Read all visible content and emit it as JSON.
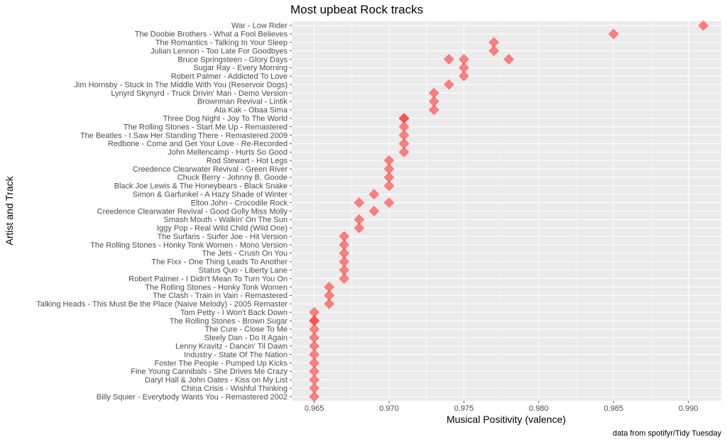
{
  "chart_data": {
    "type": "scatter",
    "title": "Most upbeat Rock tracks",
    "xlabel": "Musical Positivity (valence)",
    "ylabel": "Artist and Track",
    "caption": "data from spotifyr/Tidy Tuesday",
    "xlim": [
      0.9635,
      0.9922
    ],
    "x_ticks": [
      0.965,
      0.97,
      0.975,
      0.98,
      0.985,
      0.99
    ],
    "x_tick_labels": [
      "0.965",
      "0.970",
      "0.975",
      "0.980",
      "0.985",
      "0.990"
    ],
    "grid": true,
    "marker": "diamond",
    "colors": {
      "point": "#ff3333",
      "panel": "#ebebeb",
      "grid": "#ffffff"
    },
    "categories": [
      "War - Low Rider",
      "The Doobie Brothers - What a Fool Believes",
      "The Romantics - Talking In Your Sleep",
      "Julian Lennon - Too Late For Goodbyes",
      "Bruce Springsteen - Glory Days",
      "Sugar Ray - Every Morning",
      "Robert Palmer - Addicted To Love",
      "Jim Hornsby - Stuck In The Middle With You (Reservoir Dogs)",
      "Lynyrd Skynyrd - Truck Drivin' Man - Demo Version",
      "Brownman Revival - Lintik",
      "Ata Kak - Obaa Sima",
      "Three Dog Night - Joy To The World",
      "The Rolling Stones - Start Me Up - Remastered",
      "The Beatles - I Saw Her Standing There - Remastered 2009",
      "Redbone - Come and Get Your Love - Re-Recorded",
      "John Mellencamp - Hurts So Good",
      "Rod Stewart - Hot Legs",
      "Creedence Clearwater Revival - Green River",
      "Chuck Berry - Johnny B. Goode",
      "Black Joe Lewis & The Honeybears - Black Snake",
      "Simon & Garfunkel - A Hazy Shade of Winter",
      "Elton John - Crocodile Rock",
      "Creedence Clearwater Revival - Good Golly Miss Molly",
      "Smash Mouth - Walkin' On The Sun",
      "Iggy Pop - Real Wild Child (Wild One)",
      "The Surfaris - Surfer Joe - Hit Version",
      "The Rolling Stones - Honky Tonk Women - Mono Version",
      "The Jets - Crush On You",
      "The Fixx - One Thing Leads To Another",
      "Status Quo - Liberty Lane",
      "Robert Palmer - I Didn't Mean To Turn You On",
      "The Rolling Stones - Honky Tonk Women",
      "The Clash - Train in Vain - Remastered",
      "Talking Heads - This Must Be the Place (Naive Melody) - 2005 Remaster",
      "Tom Petty - I Won't Back Down",
      "The Rolling Stones - Brown Sugar",
      "The Cure - Close To Me",
      "Steely Dan - Do It Again",
      "Lenny Kravitz - Dancin' Til Dawn",
      "Industry - State Of The Nation",
      "Foster The People - Pumped Up Kicks",
      "Fine Young Cannibals - She Drives Me Crazy",
      "Daryl Hall & John Oates - Kiss on My List",
      "China Crisis - Wishful Thinking",
      "Billy Squier - Everybody Wants You - Remastered 2002"
    ],
    "points": [
      {
        "category": "War - Low Rider",
        "x": 0.991
      },
      {
        "category": "The Doobie Brothers - What a Fool Believes",
        "x": 0.985
      },
      {
        "category": "The Romantics - Talking In Your Sleep",
        "x": 0.977
      },
      {
        "category": "Julian Lennon - Too Late For Goodbyes",
        "x": 0.977
      },
      {
        "category": "Bruce Springsteen - Glory Days",
        "x": 0.974
      },
      {
        "category": "Bruce Springsteen - Glory Days",
        "x": 0.975
      },
      {
        "category": "Bruce Springsteen - Glory Days",
        "x": 0.978
      },
      {
        "category": "Sugar Ray - Every Morning",
        "x": 0.975
      },
      {
        "category": "Robert Palmer - Addicted To Love",
        "x": 0.975
      },
      {
        "category": "Jim Hornsby - Stuck In The Middle With You (Reservoir Dogs)",
        "x": 0.974
      },
      {
        "category": "Lynyrd Skynyrd - Truck Drivin' Man - Demo Version",
        "x": 0.973
      },
      {
        "category": "Brownman Revival - Lintik",
        "x": 0.973
      },
      {
        "category": "Ata Kak - Obaa Sima",
        "x": 0.973
      },
      {
        "category": "Three Dog Night - Joy To The World",
        "x": 0.971
      },
      {
        "category": "Three Dog Night - Joy To The World",
        "x": 0.971
      },
      {
        "category": "The Rolling Stones - Start Me Up - Remastered",
        "x": 0.971
      },
      {
        "category": "The Beatles - I Saw Her Standing There - Remastered 2009",
        "x": 0.971
      },
      {
        "category": "Redbone - Come and Get Your Love - Re-Recorded",
        "x": 0.971
      },
      {
        "category": "John Mellencamp - Hurts So Good",
        "x": 0.971
      },
      {
        "category": "Rod Stewart - Hot Legs",
        "x": 0.97
      },
      {
        "category": "Creedence Clearwater Revival - Green River",
        "x": 0.97
      },
      {
        "category": "Chuck Berry - Johnny B. Goode",
        "x": 0.97
      },
      {
        "category": "Black Joe Lewis & The Honeybears - Black Snake",
        "x": 0.97
      },
      {
        "category": "Simon & Garfunkel - A Hazy Shade of Winter",
        "x": 0.969
      },
      {
        "category": "Elton John - Crocodile Rock",
        "x": 0.968
      },
      {
        "category": "Elton John - Crocodile Rock",
        "x": 0.97
      },
      {
        "category": "Creedence Clearwater Revival - Good Golly Miss Molly",
        "x": 0.969
      },
      {
        "category": "Smash Mouth - Walkin' On The Sun",
        "x": 0.968
      },
      {
        "category": "Iggy Pop - Real Wild Child (Wild One)",
        "x": 0.968
      },
      {
        "category": "The Surfaris - Surfer Joe - Hit Version",
        "x": 0.967
      },
      {
        "category": "The Rolling Stones - Honky Tonk Women - Mono Version",
        "x": 0.967
      },
      {
        "category": "The Jets - Crush On You",
        "x": 0.967
      },
      {
        "category": "The Fixx - One Thing Leads To Another",
        "x": 0.967
      },
      {
        "category": "Status Quo - Liberty Lane",
        "x": 0.967
      },
      {
        "category": "Robert Palmer - I Didn't Mean To Turn You On",
        "x": 0.967
      },
      {
        "category": "The Rolling Stones - Honky Tonk Women",
        "x": 0.966
      },
      {
        "category": "The Clash - Train in Vain - Remastered",
        "x": 0.966
      },
      {
        "category": "Talking Heads - This Must Be the Place (Naive Melody) - 2005 Remaster",
        "x": 0.966
      },
      {
        "category": "Tom Petty - I Won't Back Down",
        "x": 0.965
      },
      {
        "category": "The Rolling Stones - Brown Sugar",
        "x": 0.965
      },
      {
        "category": "The Rolling Stones - Brown Sugar",
        "x": 0.965
      },
      {
        "category": "The Cure - Close To Me",
        "x": 0.965
      },
      {
        "category": "Steely Dan - Do It Again",
        "x": 0.965
      },
      {
        "category": "Lenny Kravitz - Dancin' Til Dawn",
        "x": 0.965
      },
      {
        "category": "Industry - State Of The Nation",
        "x": 0.965
      },
      {
        "category": "Foster The People - Pumped Up Kicks",
        "x": 0.965
      },
      {
        "category": "Fine Young Cannibals - She Drives Me Crazy",
        "x": 0.965
      },
      {
        "category": "Daryl Hall & John Oates - Kiss on My List",
        "x": 0.965
      },
      {
        "category": "China Crisis - Wishful Thinking",
        "x": 0.965
      },
      {
        "category": "Billy Squier - Everybody Wants You - Remastered 2002",
        "x": 0.965
      }
    ]
  }
}
